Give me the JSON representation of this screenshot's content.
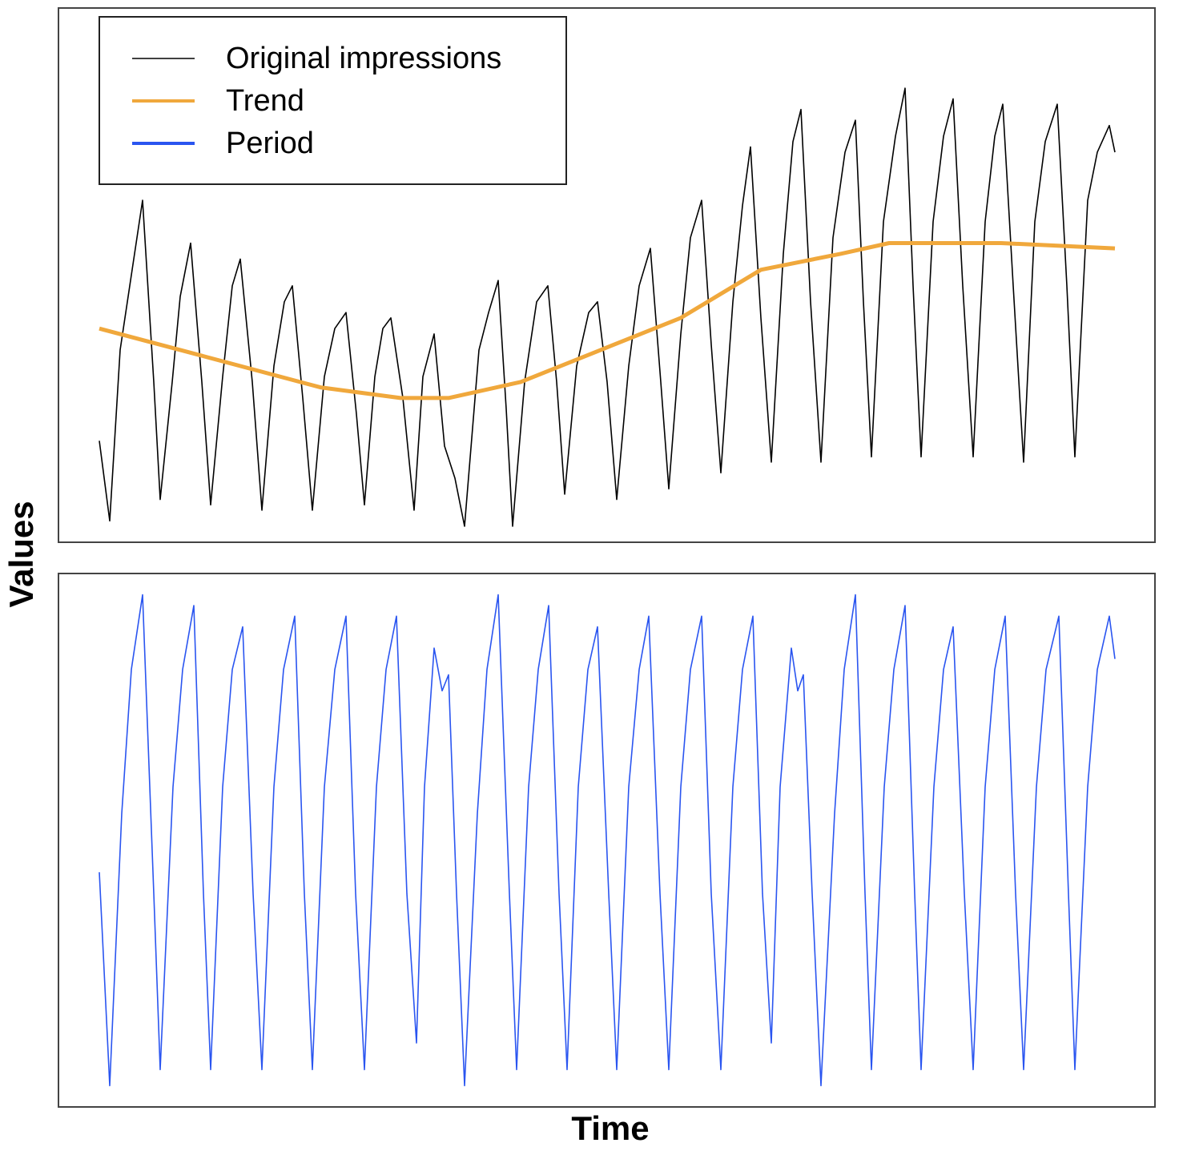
{
  "chart_data": [
    {
      "type": "line",
      "ylabel": "Values",
      "legend": "upper left",
      "xlim": [
        -51,
        1318
      ],
      "ylim": [
        0,
        100
      ],
      "series": [
        {
          "name": "Original impressions",
          "color": "#000000",
          "x": [
            0,
            13,
            26,
            41,
            54,
            68,
            76,
            91,
            101,
            114,
            128,
            139,
            154,
            166,
            176,
            191,
            203,
            218,
            231,
            241,
            254,
            266,
            281,
            294,
            308,
            321,
            331,
            344,
            354,
            364,
            379,
            393,
            404,
            418,
            431,
            444,
            456,
            474,
            486,
            498,
            508,
            516,
            531,
            546,
            560,
            571,
            581,
            596,
            611,
            622,
            634,
            646,
            661,
            674,
            688,
            701,
            711,
            726,
            738,
            752,
            764,
            776,
            791,
            803,
            813,
            826,
            839,
            854,
            866,
            876,
            888,
            901,
            916,
            931,
            944,
            954,
            964,
            979,
            994,
            1006,
            1016,
            1026,
            1041,
            1054,
            1066,
            1078,
            1091,
            1106,
            1118,
            1128,
            1141,
            1154,
            1168,
            1181,
            1196,
            1208,
            1218,
            1234,
            1246,
            1261,
            1268
          ],
          "values": [
            19,
            4,
            36,
            51,
            64,
            30,
            8,
            30,
            46,
            56,
            30,
            7,
            31,
            48,
            53,
            30,
            6,
            33,
            45,
            48,
            27,
            6,
            31,
            40,
            43,
            24,
            7,
            31,
            40,
            42,
            27,
            6,
            31,
            39,
            18,
            12,
            3,
            36,
            43,
            49,
            25,
            3,
            30,
            45,
            48,
            30,
            9,
            33,
            43,
            45,
            30,
            8,
            33,
            48,
            55,
            30,
            10,
            39,
            57,
            64,
            37,
            13,
            45,
            63,
            74,
            42,
            15,
            54,
            75,
            81,
            45,
            15,
            57,
            73,
            79,
            45,
            16,
            60,
            76,
            85,
            48,
            16,
            60,
            76,
            83,
            48,
            16,
            60,
            76,
            82,
            48,
            15,
            60,
            75,
            82,
            48,
            16,
            64,
            73,
            78,
            73
          ]
        },
        {
          "name": "Trend",
          "color": "#f0a83c",
          "x": [
            0,
            126,
            276,
            376,
            436,
            526,
            626,
            726,
            826,
            926,
            986,
            1126,
            1268
          ],
          "values": [
            40,
            35,
            29,
            27,
            27,
            30,
            36,
            42,
            51,
            54,
            56,
            56,
            55
          ]
        }
      ]
    },
    {
      "type": "line",
      "xlabel": "Time",
      "xlim": [
        -51,
        1318
      ],
      "ylim": [
        0,
        100
      ],
      "series": [
        {
          "name": "Period",
          "color": "#2a55f0",
          "x": [
            0,
            13,
            28,
            40,
            54,
            68,
            76,
            92,
            104,
            118,
            130,
            139,
            154,
            166,
            179,
            192,
            203,
            218,
            230,
            244,
            256,
            266,
            281,
            294,
            308,
            320,
            331,
            346,
            358,
            371,
            384,
            396,
            406,
            418,
            428,
            436,
            446,
            456,
            472,
            484,
            498,
            512,
            521,
            536,
            548,
            561,
            574,
            584,
            598,
            610,
            622,
            636,
            646,
            661,
            674,
            686,
            700,
            711,
            726,
            738,
            752,
            764,
            776,
            791,
            803,
            816,
            828,
            839,
            850,
            864,
            872,
            879,
            890,
            901,
            918,
            930,
            944,
            956,
            964,
            980,
            992,
            1006,
            1018,
            1026,
            1042,
            1054,
            1066,
            1080,
            1091,
            1106,
            1118,
            1131,
            1144,
            1154,
            1170,
            1182,
            1198,
            1210,
            1218,
            1234,
            1246,
            1261,
            1268
          ],
          "values": [
            44,
            4,
            55,
            82,
            96,
            40,
            7,
            60,
            82,
            94,
            40,
            7,
            60,
            82,
            90,
            40,
            7,
            60,
            82,
            92,
            40,
            7,
            60,
            82,
            92,
            40,
            7,
            60,
            82,
            92,
            40,
            12,
            60,
            86,
            78,
            81,
            40,
            4,
            55,
            82,
            96,
            40,
            7,
            60,
            82,
            94,
            40,
            7,
            60,
            82,
            90,
            40,
            7,
            60,
            82,
            92,
            40,
            7,
            60,
            82,
            92,
            40,
            7,
            60,
            82,
            92,
            40,
            12,
            60,
            86,
            78,
            81,
            40,
            4,
            55,
            82,
            96,
            40,
            7,
            60,
            82,
            94,
            40,
            7,
            60,
            82,
            90,
            40,
            7,
            60,
            82,
            92,
            40,
            7,
            60,
            82,
            92,
            40,
            7,
            60,
            82,
            92,
            84
          ]
        }
      ]
    }
  ]
}
